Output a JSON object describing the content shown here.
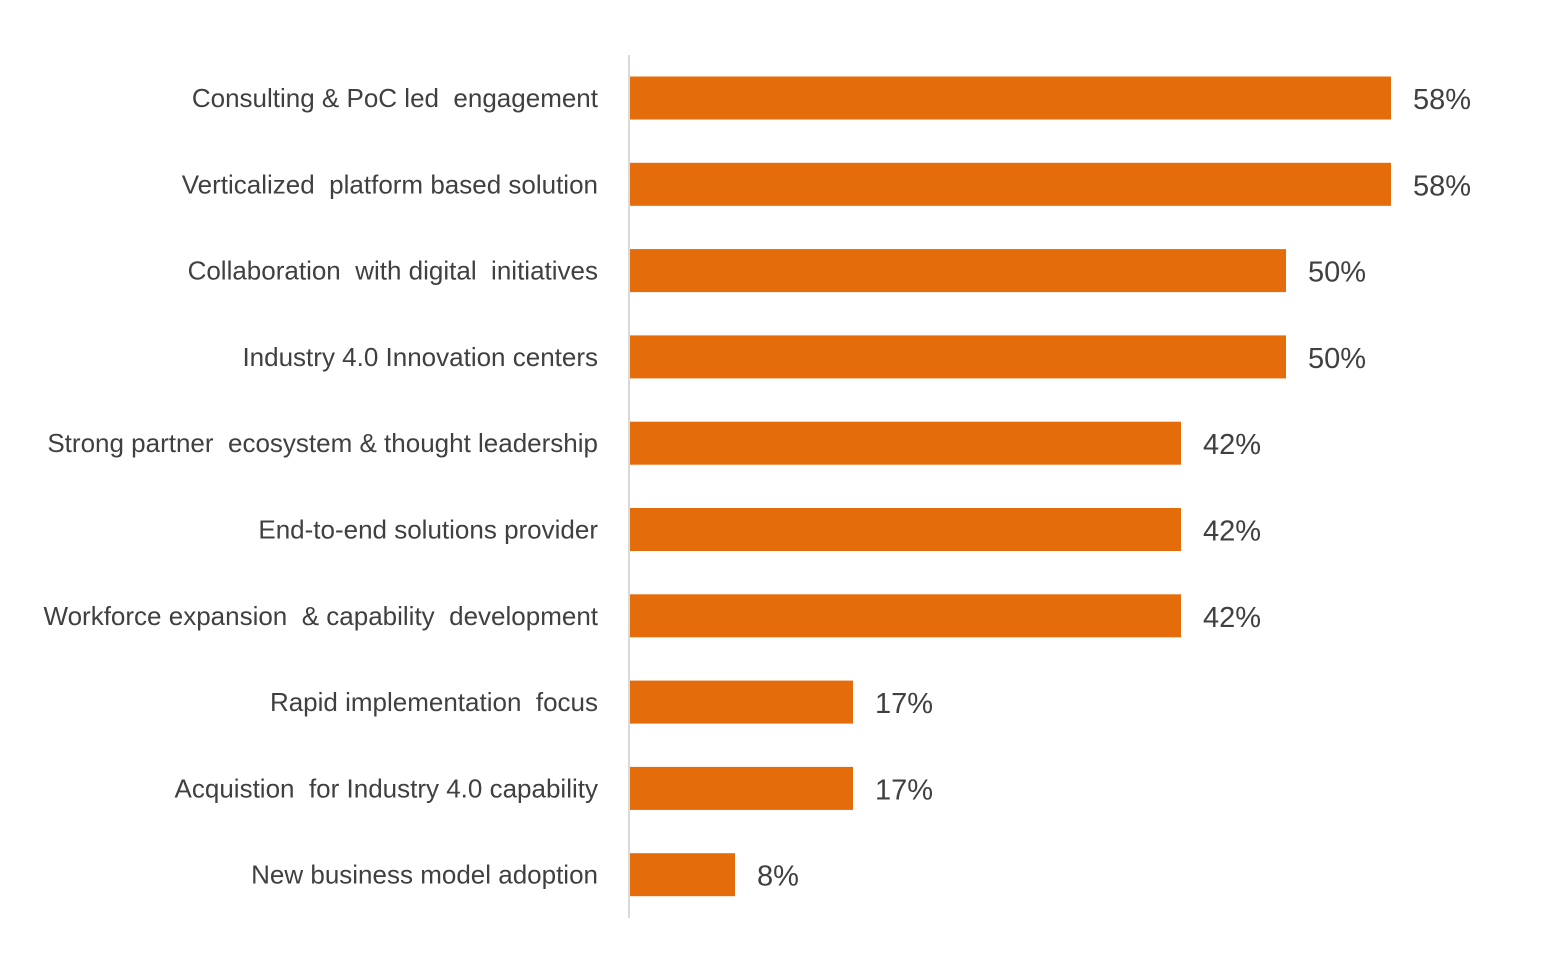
{
  "chart_data": {
    "type": "bar",
    "orientation": "horizontal",
    "categories": [
      "Consulting & PoC led  engagement",
      "Verticalized  platform based solution",
      "Collaboration  with digital  initiatives",
      "Industry 4.0 Innovation centers",
      "Strong partner  ecosystem & thought leadership",
      "End-to-end solutions provider",
      "Workforce expansion  & capability  development",
      "Rapid implementation  focus",
      "Acquistion  for Industry 4.0 capability",
      "New business model adoption"
    ],
    "values": [
      58,
      58,
      50,
      50,
      42,
      42,
      42,
      17,
      17,
      8
    ],
    "value_labels": [
      "58%",
      "58%",
      "50%",
      "50%",
      "42%",
      "42%",
      "42%",
      "17%",
      "17%",
      "8%"
    ],
    "unit": "%",
    "title": "",
    "xlabel": "",
    "ylabel": "",
    "xlim": [
      0,
      60
    ],
    "grid": false,
    "legend": "none",
    "colors": {
      "bar": "#E46C0A",
      "axis": "#D9D9D9",
      "text": "#404040"
    }
  }
}
